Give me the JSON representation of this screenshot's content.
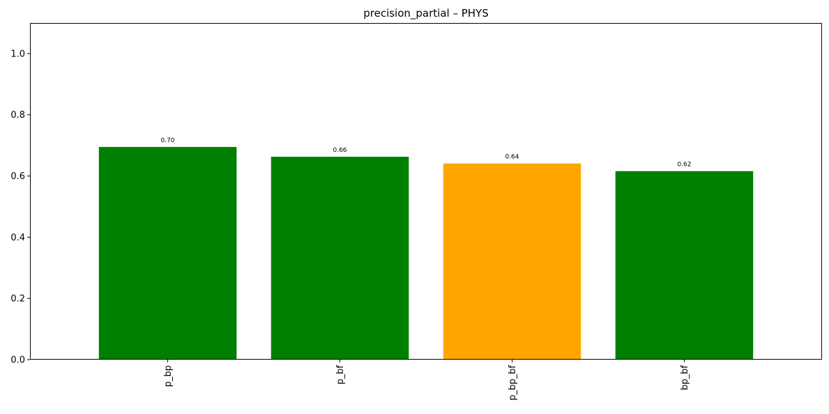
{
  "chart_data": {
    "type": "bar",
    "title": "precision_partial – PHYS",
    "xlabel": "",
    "ylabel": "",
    "categories": [
      "p_bp",
      "p_bf",
      "p_bp_bf",
      "bp_bf"
    ],
    "values": [
      0.695,
      0.663,
      0.641,
      0.616
    ],
    "value_labels": [
      "0.70",
      "0.66",
      "0.64",
      "0.62"
    ],
    "bar_colors": [
      "#008000",
      "#008000",
      "#ffa500",
      "#008000"
    ],
    "ylim": [
      0,
      1.1
    ],
    "yticks": [
      0.0,
      0.2,
      0.4,
      0.6,
      0.8,
      1.0
    ],
    "ytick_labels": [
      "0.0",
      "0.2",
      "0.4",
      "0.6",
      "0.8",
      "1.0"
    ],
    "xtick_rotation": "vertical",
    "grid": false,
    "legend": "none"
  }
}
